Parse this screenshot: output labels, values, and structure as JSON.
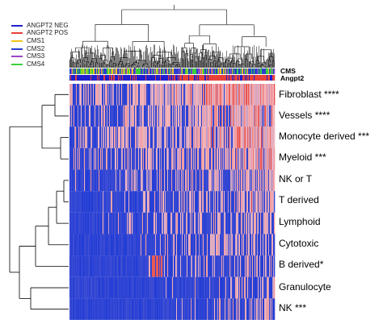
{
  "chart_data": {
    "type": "heatmap",
    "row_labels": [
      "Fibroblast ****",
      "Vessels ****",
      "Monocyte derived ***",
      "Myeloid ***",
      "NK or T",
      "T derived",
      "Lymphoid",
      "Cytotoxic",
      "B derived*",
      "Granulocyte",
      "NK ***"
    ],
    "annotation_tracks": [
      "CMS",
      "Angpt2"
    ],
    "legend": [
      {
        "label": "ANGPT2 NEG",
        "color": "#1f1fd0"
      },
      {
        "label": "ANGPT2 POS",
        "color": "#e8413a"
      },
      {
        "label": "CMS1",
        "color": "#f0c419"
      },
      {
        "label": "CMS2",
        "color": "#2a3fcf"
      },
      {
        "label": "CMS3",
        "color": "#9b46c8"
      },
      {
        "label": "CMS4",
        "color": "#3ccf3c"
      }
    ],
    "legend_placement": "top-left",
    "colors": {
      "low": "#1f3bd6",
      "mid": "#f4b9bf",
      "high": "#e8413a"
    }
  }
}
